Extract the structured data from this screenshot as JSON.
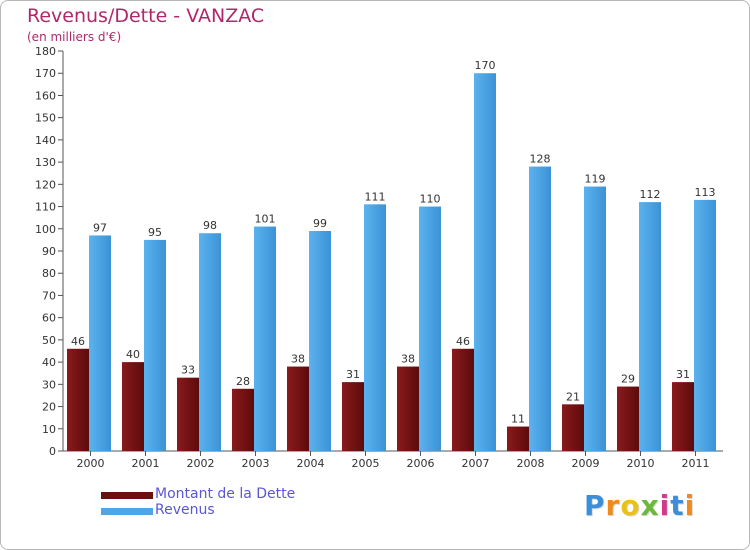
{
  "header": {
    "title": "Revenus/Dette - VANZAC",
    "subtitle": "(en milliers d'€)"
  },
  "chart_data": {
    "type": "bar",
    "title": "Revenus/Dette - VANZAC",
    "ylabel": "(en milliers d'€)",
    "xlabel": "",
    "categories": [
      "2000",
      "2001",
      "2002",
      "2003",
      "2004",
      "2005",
      "2006",
      "2007",
      "2008",
      "2009",
      "2010",
      "2011"
    ],
    "series": [
      {
        "name": "Montant de la Dette",
        "color": "#7a1416",
        "values": [
          46,
          40,
          33,
          28,
          38,
          31,
          38,
          46,
          11,
          21,
          29,
          31
        ]
      },
      {
        "name": "Revenus",
        "color": "#4ea6e6",
        "values": [
          97,
          95,
          98,
          101,
          99,
          111,
          110,
          170,
          128,
          119,
          112,
          113
        ]
      }
    ],
    "ylim": [
      0,
      180
    ],
    "yticks": [
      0,
      10,
      20,
      30,
      40,
      50,
      60,
      70,
      80,
      90,
      100,
      110,
      120,
      130,
      140,
      150,
      160,
      170,
      180
    ],
    "grid": false,
    "legend": "bottom-left"
  },
  "legend": {
    "items": [
      {
        "label": "Montant de la Dette",
        "color": "#6b0f10"
      },
      {
        "label": "Revenus",
        "color": "#4ea6e6"
      }
    ]
  },
  "logo": {
    "letters": [
      "P",
      "r",
      "o",
      "x",
      "i",
      "t",
      "i"
    ],
    "colors": [
      "#3a8fd8",
      "#f08a1c",
      "#e8c21a",
      "#6bb83a",
      "#d43a8c",
      "#3a8fd8",
      "#f08a1c"
    ]
  }
}
